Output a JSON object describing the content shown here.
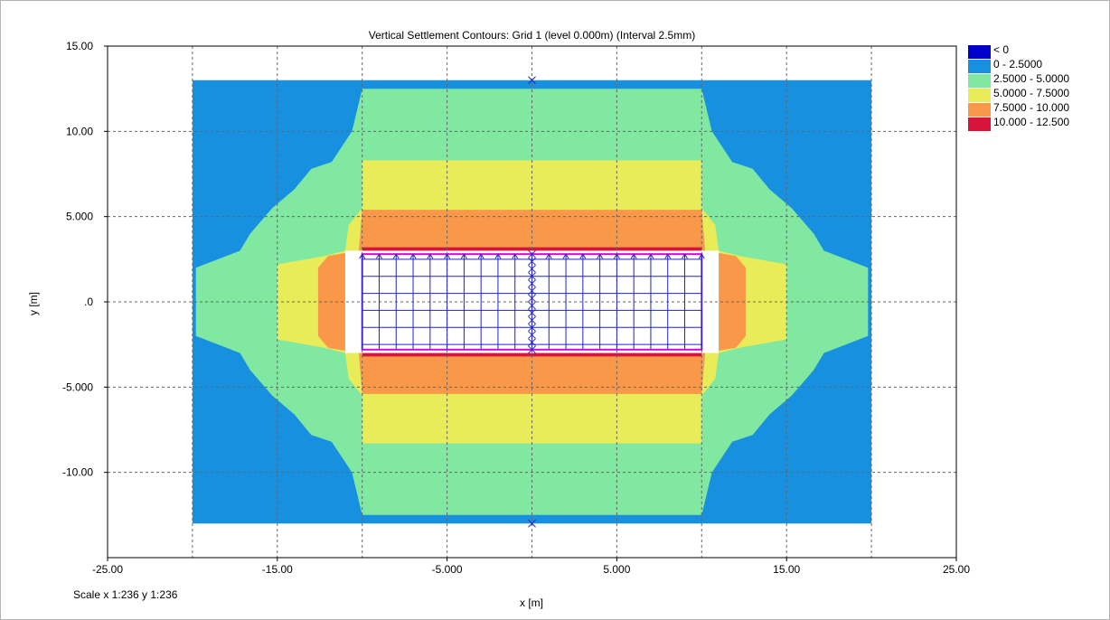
{
  "chart_data": {
    "type": "heatmap",
    "title": "Vertical Settlement Contours: Grid 1 (level 0.000m) (Interval 2.5mm)",
    "xlabel": "x [m]",
    "ylabel": "y [m]",
    "xlim": [
      -25,
      25
    ],
    "ylim": [
      -15,
      15
    ],
    "x_ticks": [
      -25,
      -20,
      -15,
      -10,
      -5,
      0,
      5,
      10,
      15,
      20,
      25
    ],
    "y_ticks": [
      15,
      10,
      5,
      0,
      -5,
      -10,
      -15
    ],
    "x_tick_labels": [
      {
        "value": -25,
        "label": "-25.00"
      },
      {
        "value": -15,
        "label": "-15.00"
      },
      {
        "value": -5,
        "label": "-5.000"
      },
      {
        "value": 5,
        "label": "5.000"
      },
      {
        "value": 15,
        "label": "15.00"
      },
      {
        "value": 25,
        "label": "25.00"
      }
    ],
    "y_tick_labels": [
      {
        "value": 15,
        "label": "15.00"
      },
      {
        "value": 10,
        "label": "10.00"
      },
      {
        "value": 5,
        "label": "5.000"
      },
      {
        "value": 0,
        "label": ".0"
      },
      {
        "value": -5,
        "label": "-5.000"
      },
      {
        "value": -10,
        "label": "-10.00"
      }
    ],
    "grid": true,
    "legend_position": "right",
    "legend": [
      {
        "label": "< 0",
        "color": "#0000cd"
      },
      {
        "label": "0 - 2.5000",
        "color": "#1890e0"
      },
      {
        "label": "2.5000 - 5.0000",
        "color": "#80e8a0"
      },
      {
        "label": "5.0000 - 7.5000",
        "color": "#e8ec58"
      },
      {
        "label": "7.5000 - 10.000",
        "color": "#f89848"
      },
      {
        "label": "10.000 - 12.500",
        "color": "#d8143c"
      }
    ],
    "contour_bands": [
      {
        "band": "0 - 2.5000",
        "polygon": [
          [
            -20,
            13
          ],
          [
            20,
            13
          ],
          [
            20,
            -13
          ],
          [
            -20,
            -13
          ]
        ]
      },
      {
        "band": "2.5000 - 5.0000",
        "polygon": [
          [
            -10,
            12.5
          ],
          [
            10,
            12.5
          ],
          [
            10.6,
            10
          ],
          [
            11.8,
            8.2
          ],
          [
            13,
            7.8
          ],
          [
            14,
            6.6
          ],
          [
            15.3,
            5.5
          ],
          [
            16.6,
            4
          ],
          [
            17.2,
            3
          ],
          [
            19.8,
            2
          ],
          [
            19.8,
            -2
          ],
          [
            17.2,
            -3
          ],
          [
            16.6,
            -4
          ],
          [
            15.3,
            -5.5
          ],
          [
            14,
            -6.6
          ],
          [
            13,
            -7.8
          ],
          [
            11.8,
            -8.2
          ],
          [
            10.6,
            -10
          ],
          [
            10,
            -12.5
          ],
          [
            -10,
            -12.5
          ],
          [
            -10.6,
            -10
          ],
          [
            -11.8,
            -8.2
          ],
          [
            -13,
            -7.8
          ],
          [
            -14,
            -6.6
          ],
          [
            -15.3,
            -5.5
          ],
          [
            -16.6,
            -4
          ],
          [
            -17.2,
            -3
          ],
          [
            -19.8,
            -2
          ],
          [
            -19.8,
            2
          ],
          [
            -17.2,
            3
          ],
          [
            -16.6,
            4
          ],
          [
            -15.3,
            5.5
          ],
          [
            -14,
            6.6
          ],
          [
            -13,
            7.8
          ],
          [
            -11.8,
            8.2
          ],
          [
            -10.6,
            10
          ]
        ]
      },
      {
        "band": "5.0000 - 7.5000",
        "polygon": [
          [
            -10,
            8.3
          ],
          [
            10,
            8.3
          ],
          [
            10,
            5.5
          ],
          [
            10.8,
            4.5
          ],
          [
            11,
            3
          ],
          [
            12.2,
            2.7
          ],
          [
            15,
            2.2
          ],
          [
            15,
            -2.2
          ],
          [
            12.2,
            -2.7
          ],
          [
            11,
            -3
          ],
          [
            10.8,
            -4.5
          ],
          [
            10,
            -5.5
          ],
          [
            10,
            -8.3
          ],
          [
            -10,
            -8.3
          ],
          [
            -10,
            -5.5
          ],
          [
            -10.8,
            -4.5
          ],
          [
            -11,
            -3
          ],
          [
            -12.2,
            -2.7
          ],
          [
            -15,
            -2.2
          ],
          [
            -15,
            2.2
          ],
          [
            -12.2,
            2.7
          ],
          [
            -11,
            3
          ],
          [
            -10.8,
            4.5
          ],
          [
            -10,
            5.5
          ]
        ]
      },
      {
        "band": "7.5000 - 10.000",
        "polygon": [
          [
            -10,
            5.4
          ],
          [
            10,
            5.4
          ],
          [
            10.2,
            3
          ],
          [
            12,
            2.7
          ],
          [
            12.6,
            2
          ],
          [
            12.6,
            -2
          ],
          [
            12,
            -2.7
          ],
          [
            10.2,
            -3
          ],
          [
            10,
            -5.4
          ],
          [
            -10,
            -5.4
          ],
          [
            -10.2,
            -3
          ],
          [
            -12,
            -2.7
          ],
          [
            -12.6,
            -2
          ],
          [
            -12.6,
            2
          ],
          [
            -12,
            2.7
          ],
          [
            -10.2,
            3
          ]
        ]
      },
      {
        "band": "10.000 - 12.500",
        "polygon": [
          [
            -10,
            3.2
          ],
          [
            10,
            3.2
          ],
          [
            10,
            2.8
          ],
          [
            -10,
            2.8
          ]
        ]
      },
      {
        "band": "10.000 - 12.500",
        "polygon": [
          [
            -10,
            -2.8
          ],
          [
            10,
            -2.8
          ],
          [
            10,
            -3.2
          ],
          [
            -10,
            -3.2
          ]
        ]
      }
    ],
    "raft_outline": {
      "x": [
        -11,
        11
      ],
      "y": [
        -3,
        3
      ]
    },
    "foundation_outline": {
      "x": [
        -10,
        10
      ],
      "y": [
        -2.8,
        2.8
      ]
    },
    "pile_grid": {
      "x": [
        -10,
        -9,
        -8,
        -7,
        -6,
        -5,
        -4,
        -3,
        -2,
        -1,
        0,
        1,
        2,
        3,
        4,
        5,
        6,
        7,
        8,
        9,
        10
      ],
      "y": [
        -2.5,
        -1.5,
        -0.5,
        0.5,
        1.5,
        2.5
      ]
    },
    "section_markers": [
      {
        "x": 0,
        "y": 13
      },
      {
        "x": 0,
        "y": -13
      }
    ]
  },
  "footer": {
    "scale": "Scale x 1:236  y 1:236"
  }
}
